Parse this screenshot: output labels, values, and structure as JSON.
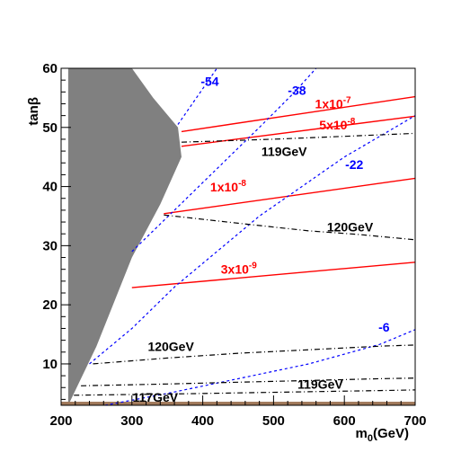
{
  "chart_data": {
    "type": "line",
    "title": "",
    "xlabel": "m0(GeV)",
    "xlabel_main": "m",
    "xlabel_sub": "0",
    "xlabel_unit": "(GeV)",
    "ylabel": "tanβ",
    "xlim": [
      200,
      700
    ],
    "ylim": [
      3,
      60
    ],
    "xticks": [
      200,
      300,
      400,
      500,
      600,
      700
    ],
    "yticks": [
      10,
      20,
      30,
      40,
      50,
      60
    ],
    "grid": false,
    "legend": "none",
    "excluded_region": {
      "color": "#808080",
      "boundary": [
        [
          210,
          3
        ],
        [
          250,
          13
        ],
        [
          300,
          28
        ],
        [
          340,
          37
        ],
        [
          370,
          45
        ],
        [
          365,
          50
        ],
        [
          330,
          55
        ],
        [
          300,
          60
        ],
        [
          210,
          60
        ]
      ]
    },
    "bottom_band": {
      "color": "#a0785a",
      "y_from": 3,
      "y_to": 3.6
    },
    "series": [
      {
        "group": "red-solid",
        "label": "1x10-7",
        "color": "#ff0000",
        "dash": "solid",
        "points": [
          [
            370,
            49.3
          ],
          [
            700,
            55.2
          ]
        ]
      },
      {
        "group": "red-solid",
        "label": "5x10-8",
        "color": "#ff0000",
        "dash": "solid",
        "points": [
          [
            370,
            46.8
          ],
          [
            700,
            51.9
          ]
        ]
      },
      {
        "group": "red-solid",
        "label": "1x10-8",
        "color": "#ff0000",
        "dash": "solid",
        "points": [
          [
            345,
            35.4
          ],
          [
            700,
            41.4
          ]
        ]
      },
      {
        "group": "red-solid",
        "label": "3x10-9",
        "color": "#ff0000",
        "dash": "solid",
        "points": [
          [
            300,
            22.9
          ],
          [
            700,
            27.2
          ]
        ]
      },
      {
        "group": "blue-dashed",
        "label": "-54",
        "color": "#0000ff",
        "dash": "dashed",
        "points": [
          [
            365,
            50.5
          ],
          [
            420,
            60
          ]
        ]
      },
      {
        "group": "blue-dashed",
        "label": "-38",
        "color": "#0000ff",
        "dash": "dashed",
        "points": [
          [
            300,
            29
          ],
          [
            360,
            36
          ],
          [
            420,
            43
          ],
          [
            480,
            50
          ],
          [
            530,
            56
          ],
          [
            560,
            60
          ]
        ]
      },
      {
        "group": "blue-dashed",
        "label": "-22",
        "color": "#0000ff",
        "dash": "dashed",
        "points": [
          [
            240,
            10
          ],
          [
            300,
            16
          ],
          [
            360,
            23
          ],
          [
            420,
            29
          ],
          [
            480,
            35
          ],
          [
            540,
            40
          ],
          [
            600,
            45
          ],
          [
            650,
            48.5
          ],
          [
            700,
            52
          ]
        ]
      },
      {
        "group": "blue-dashed",
        "label": "-6",
        "color": "#0000ff",
        "dash": "dashed",
        "points": [
          [
            262,
            3
          ],
          [
            350,
            5
          ],
          [
            450,
            7.5
          ],
          [
            550,
            10
          ],
          [
            650,
            13.3
          ],
          [
            700,
            15.8
          ]
        ]
      },
      {
        "group": "black-dashdot",
        "label": "119GeV",
        "color": "#000000",
        "dash": "dashdot",
        "points": [
          [
            370,
            47.5
          ],
          [
            500,
            48
          ],
          [
            600,
            48.5
          ],
          [
            700,
            49
          ]
        ]
      },
      {
        "group": "black-dashdot",
        "label": "120GeV",
        "color": "#000000",
        "dash": "dashdot",
        "points": [
          [
            345,
            35.2
          ],
          [
            450,
            33.8
          ],
          [
            550,
            32.5
          ],
          [
            620,
            31.9
          ],
          [
            700,
            31
          ]
        ]
      },
      {
        "group": "black-dashdot",
        "label": "120GeV",
        "color": "#000000",
        "dash": "dashdot",
        "points": [
          [
            245,
            10
          ],
          [
            350,
            11
          ],
          [
            450,
            11.8
          ],
          [
            550,
            12.4
          ],
          [
            650,
            13
          ],
          [
            700,
            13.2
          ]
        ]
      },
      {
        "group": "black-dashdot",
        "label": "119GeV",
        "color": "#000000",
        "dash": "dashdot",
        "points": [
          [
            228,
            6.3
          ],
          [
            350,
            6.6
          ],
          [
            450,
            6.9
          ],
          [
            550,
            7.2
          ],
          [
            650,
            7.5
          ],
          [
            700,
            7.6
          ]
        ]
      },
      {
        "group": "black-dashdot",
        "label": "117GeV",
        "color": "#000000",
        "dash": "dashdot",
        "points": [
          [
            218,
            4.7
          ],
          [
            350,
            4.9
          ],
          [
            450,
            5.1
          ],
          [
            550,
            5.3
          ],
          [
            650,
            5.5
          ],
          [
            700,
            5.6
          ]
        ]
      }
    ],
    "annotations": [
      {
        "text": "-54",
        "x": 410,
        "y": 57,
        "color": "#0000ff"
      },
      {
        "text": "-38",
        "x": 533,
        "y": 55.5,
        "color": "#0000ff"
      },
      {
        "text": "-22",
        "x": 614,
        "y": 43,
        "color": "#0000ff"
      },
      {
        "text": "-6",
        "x": 656,
        "y": 15.5,
        "color": "#0000ff"
      },
      {
        "text": "1x10",
        "sup": "-7",
        "x": 584,
        "y": 53.2,
        "color": "#ff0000"
      },
      {
        "text": "5x10",
        "sup": "-8",
        "x": 590,
        "y": 49.7,
        "color": "#ff0000"
      },
      {
        "text": "1x10",
        "sup": "-8",
        "x": 436,
        "y": 39.2,
        "color": "#ff0000"
      },
      {
        "text": "3x10",
        "sup": "-9",
        "x": 451,
        "y": 25.3,
        "color": "#ff0000"
      },
      {
        "text": "119GeV",
        "x": 515,
        "y": 45.2,
        "color": "#000000"
      },
      {
        "text": "120GeV",
        "x": 608,
        "y": 32.4,
        "color": "#000000"
      },
      {
        "text": "120GeV",
        "x": 355,
        "y": 12.2,
        "color": "#000000"
      },
      {
        "text": "119GeV",
        "x": 566,
        "y": 5.8,
        "color": "#000000"
      },
      {
        "text": "117GeV",
        "x": 333,
        "y": 3.6,
        "color": "#000000"
      }
    ]
  }
}
